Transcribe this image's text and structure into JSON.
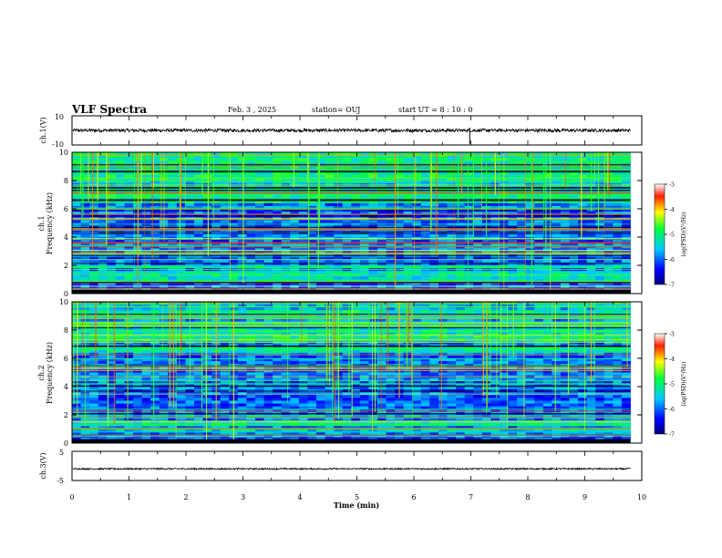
{
  "header": {
    "title": "VLF Spectra",
    "date": "Feb. 3 , 2025",
    "station": "station= OUJ",
    "start_ut": "start  UT =  8 : 10 : 0"
  },
  "chart_data": [
    {
      "type": "line",
      "panel": "ch1-waveform",
      "ylabel": "ch.1(V)",
      "ylim": [
        -10,
        10
      ],
      "yticks": [
        "10",
        "-10"
      ],
      "xlim": [
        0,
        10
      ],
      "series_level": 0
    },
    {
      "type": "heatmap",
      "panel": "ch1-spectrogram",
      "ylabel_line1": "ch.1",
      "ylabel_line2": "Frequency (kHz)",
      "ylim": [
        0,
        10
      ],
      "yticks": [
        "0",
        "2",
        "4",
        "6",
        "8",
        "10"
      ],
      "xlim": [
        0,
        10
      ],
      "data_end_min": 9.8,
      "colorbar": {
        "label": "log(PSD)(V²/Hz)",
        "range": [
          -7,
          -3
        ],
        "ticks": [
          "-3",
          "-4",
          "-5",
          "-6",
          "-7"
        ]
      }
    },
    {
      "type": "heatmap",
      "panel": "ch2-spectrogram",
      "ylabel_line1": "ch.2",
      "ylabel_line2": "Frequency (kHz)",
      "ylim": [
        0,
        10
      ],
      "yticks": [
        "0",
        "2",
        "4",
        "6",
        "8",
        "10"
      ],
      "xlim": [
        0,
        10
      ],
      "data_end_min": 9.8,
      "colorbar": {
        "label": "log(PSD)(V²/Hz)",
        "range": [
          -7,
          -3
        ],
        "ticks": [
          "-3",
          "-4",
          "-5",
          "-6",
          "-7"
        ]
      }
    },
    {
      "type": "line",
      "panel": "ch3-waveform",
      "ylabel": "ch.3(V)",
      "ylim": [
        -5,
        5
      ],
      "yticks": [
        "5",
        "-5"
      ],
      "xlim": [
        0,
        10
      ],
      "xlabel": "Time (min)",
      "xticks": [
        "0",
        "1",
        "2",
        "3",
        "4",
        "5",
        "6",
        "7",
        "8",
        "9",
        "10"
      ],
      "series_level": -1
    }
  ]
}
